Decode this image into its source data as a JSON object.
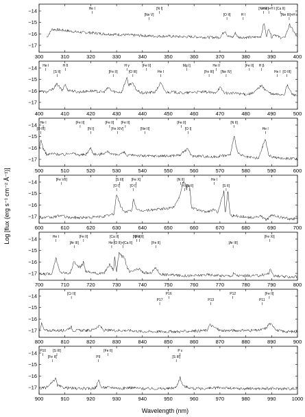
{
  "chart_data": {
    "type": "line",
    "xlabel": "Wavelength (nm)",
    "ylabel": "Log [flux (erg s⁻¹ cm⁻² Å⁻¹)]",
    "ylim": [
      -17.6,
      -13.4
    ],
    "yticks": [
      -14,
      -15,
      -16,
      -17
    ],
    "panels": [
      {
        "xlim": [
          300,
          400
        ],
        "xticks": [
          300,
          310,
          320,
          330,
          340,
          350,
          360,
          370,
          380,
          390,
          400
        ],
        "series": [
          {
            "x": [
              303,
              305,
              310,
              315,
              320,
              325,
              330,
              335,
              340,
              345,
              350,
              355,
              360,
              365,
              370,
              372,
              373,
              374,
              375,
              376,
              377,
              380,
              383,
              386,
              387,
              388,
              389,
              390,
              391,
              393,
              395,
              397,
              400
            ],
            "y": [
              -16.3,
              -15.6,
              -15.7,
              -15.85,
              -15.9,
              -16.0,
              -16.05,
              -16.1,
              -16.15,
              -16.2,
              -16.2,
              -16.25,
              -16.25,
              -16.3,
              -16.3,
              -15.7,
              -16.2,
              -16.25,
              -16.3,
              -15.9,
              -16.3,
              -16.3,
              -16.3,
              -16.2,
              -15.0,
              -16.2,
              -15.5,
              -16.3,
              -16.0,
              -16.3,
              -16.35,
              -15.2,
              -16.35
            ]
          }
        ],
        "labels": [
          {
            "text": "He I",
            "x": 320.5
          },
          {
            "text": "[Ne V]",
            "x": 342.6
          },
          {
            "text": "[N I]",
            "x": 346.6
          },
          {
            "text": "H I",
            "x": 379
          },
          {
            "text": "[Ne III]",
            "x": 386.9
          },
          {
            "text": "[Ne III]+H ε",
            "x": 396.8
          },
          {
            "text": "[Ca II]",
            "x": 393.4
          },
          {
            "text": "[O II]",
            "x": 372.7
          },
          {
            "text": "He I+H I",
            "x": 388.9
          }
        ]
      },
      {
        "xlim": [
          400,
          500
        ],
        "xticks": [
          400,
          410,
          420,
          430,
          440,
          450,
          460,
          470,
          480,
          490,
          500
        ],
        "series": [
          {
            "x": [
              400,
              403,
              405,
              407,
              409,
              410,
              411,
              413,
              415,
              420,
              425,
              427,
              428,
              430,
              432,
              434,
              434.5,
              436,
              438,
              440,
              445,
              447,
              449,
              452,
              456,
              460,
              465,
              468,
              470,
              472,
              474,
              476,
              480,
              483,
              486,
              487,
              490,
              492,
              495,
              496,
              498,
              500
            ],
            "y": [
              -16.0,
              -16.1,
              -15.9,
              -15.4,
              -16.0,
              -15.4,
              -15.9,
              -16.0,
              -16.1,
              -16.0,
              -16.1,
              -15.7,
              -16.0,
              -16.1,
              -16.1,
              -14.8,
              -15.5,
              -15.3,
              -16.0,
              -16.2,
              -16.1,
              -15.3,
              -16.1,
              -16.1,
              -16.2,
              -16.1,
              -16.1,
              -16.2,
              -15.7,
              -16.2,
              -16.2,
              -16.2,
              -16.3,
              -16.2,
              -15.5,
              -15.8,
              -16.3,
              -16.3,
              -16.3,
              -15.5,
              -16.3,
              -16.4
            ]
          }
        ],
        "labels": [
          {
            "text": "He I",
            "x": 402.6
          },
          {
            "text": "[S II]",
            "x": 407
          },
          {
            "text": "H δ",
            "x": 410.2
          },
          {
            "text": "[Fe II]",
            "x": 428.7
          },
          {
            "text": "H γ",
            "x": 434
          },
          {
            "text": "[O III]",
            "x": 436.3
          },
          {
            "text": "[Fe II]",
            "x": 441.6
          },
          {
            "text": "He I",
            "x": 447.1
          },
          {
            "text": "Mg I]",
            "x": 457.1
          },
          {
            "text": "[Fe III]",
            "x": 465.8
          },
          {
            "text": "He II",
            "x": 468.6
          },
          {
            "text": "[Ne IV]",
            "x": 472.4
          },
          {
            "text": "[Fe II]",
            "x": 481.4
          },
          {
            "text": "He I",
            "x": 492.2
          },
          {
            "text": "H β",
            "x": 486.1
          },
          {
            "text": "[O III]",
            "x": 495.9
          }
        ]
      },
      {
        "xlim": [
          500,
          600
        ],
        "xticks": [
          500,
          510,
          520,
          530,
          540,
          550,
          560,
          570,
          580,
          590,
          600
        ],
        "series": [
          {
            "x": [
              500,
              500.7,
              501.5,
              503,
              505,
              510,
              512,
              515,
              518,
              520,
              521,
              523,
              527,
              528,
              530,
              533,
              534,
              537,
              540,
              545,
              550,
              555,
              556,
              557.7,
              559,
              563,
              567,
              570,
              574,
              575.5,
              577,
              580,
              585,
              587.5,
              589,
              593,
              597,
              600
            ],
            "y": [
              -16.3,
              -15.2,
              -16.0,
              -16.6,
              -16.5,
              -16.6,
              -16.4,
              -16.6,
              -16.6,
              -16.0,
              -16.5,
              -16.6,
              -16.3,
              -16.6,
              -16.6,
              -16.4,
              -16.7,
              -16.6,
              -16.7,
              -16.7,
              -16.7,
              -16.6,
              -16.3,
              -16.1,
              -16.7,
              -16.7,
              -16.8,
              -16.7,
              -16.6,
              -15.0,
              -16.5,
              -16.8,
              -16.9,
              -15.2,
              -16.7,
              -16.9,
              -16.9,
              -17.0
            ]
          }
        ],
        "labels": [
          {
            "text": "He I",
            "x": 501.6
          },
          {
            "text": "[O III]",
            "x": 500.7
          },
          {
            "text": "[Fe II]",
            "x": 515.9
          },
          {
            "text": "[N I]",
            "x": 520
          },
          {
            "text": "[Fe II]",
            "x": 527.3
          },
          {
            "text": "[Fe XIV]",
            "x": 530.3
          },
          {
            "text": "[Fe II]",
            "x": 533.4
          },
          {
            "text": "[Ne II]",
            "x": 541
          },
          {
            "text": "[Fe II]",
            "x": 555.1
          },
          {
            "text": "[O I]",
            "x": 557.7
          },
          {
            "text": "[N II]",
            "x": 575.5
          },
          {
            "text": "He I",
            "x": 587.6
          }
        ]
      },
      {
        "xlim": [
          600,
          700
        ],
        "xticks": [
          600,
          610,
          620,
          630,
          640,
          650,
          660,
          670,
          680,
          690,
          700
        ],
        "series": [
          {
            "x": [
              600,
              605,
              608.7,
              611,
              620,
              625,
              629,
              630,
              631.5,
              633,
              636,
              636.4,
              638,
              640,
              645,
              650,
              652,
              654.5,
              655.5,
              656.3,
              657,
              658.3,
              659,
              662,
              665,
              667.8,
              669,
              671.6,
              672,
              673.1,
              674,
              678,
              682,
              686,
              688,
              690,
              694,
              697,
              700
            ],
            "y": [
              -17.1,
              -17.1,
              -16.9,
              -17.1,
              -17.1,
              -17.0,
              -16.8,
              -15.0,
              -16.1,
              -16.6,
              -16.5,
              -15.4,
              -16.5,
              -16.5,
              -16.4,
              -16.3,
              -16.2,
              -15.2,
              -14.1,
              -14.0,
              -14.6,
              -14.3,
              -16.2,
              -16.5,
              -16.6,
              -16.4,
              -16.7,
              -14.8,
              -16.8,
              -14.8,
              -16.9,
              -17.0,
              -17.1,
              -17.0,
              -17.3,
              -16.9,
              -17.1,
              -17.2,
              -17.2
            ]
          }
        ],
        "labels": [
          {
            "text": "[Fe VII]",
            "x": 608.7
          },
          {
            "text": "[O I]",
            "x": 630
          },
          {
            "text": "[S III]",
            "x": 631.2
          },
          {
            "text": "[O I]",
            "x": 636.4
          },
          {
            "text": "[Fe X]",
            "x": 637.5
          },
          {
            "text": "H α",
            "x": 656.3
          },
          {
            "text": "[N II]",
            "x": 654.8
          },
          {
            "text": "[N II]",
            "x": 658.3
          },
          {
            "text": "He I",
            "x": 667.8
          },
          {
            "text": "[S II]",
            "x": 672.4
          }
        ]
      },
      {
        "xlim": [
          700,
          800
        ],
        "xticks": [
          700,
          710,
          720,
          730,
          740,
          750,
          760,
          770,
          780,
          790,
          800
        ],
        "series": [
          {
            "x": [
              700,
              705,
              706.5,
              708,
              712,
              713.6,
              714.5,
              716,
              717.2,
              718,
              722,
              725,
              727.4,
              729,
              729.1,
              730,
              731,
              732,
              733,
              734,
              735,
              738.8,
              740,
              743,
              745.2,
              747,
              750,
              755,
              760,
              765,
              770,
              775,
              775.1,
              777,
              780,
              785,
              789,
              789.2,
              791,
              795,
              800
            ],
            "y": [
              -17.1,
              -17.0,
              -15.6,
              -16.9,
              -17.0,
              -15.9,
              -16.3,
              -16.5,
              -16.0,
              -16.8,
              -17.0,
              -17.0,
              -16.2,
              -16.8,
              -15.3,
              -16.8,
              -15.1,
              -15.5,
              -15.6,
              -16.4,
              -16.9,
              -16.6,
              -16.9,
              -17.0,
              -16.5,
              -17.1,
              -17.1,
              -17.2,
              -17.2,
              -17.1,
              -17.2,
              -17.2,
              -17.0,
              -17.2,
              -17.2,
              -17.2,
              -17.0,
              -16.6,
              -17.2,
              -17.3,
              -17.3
            ]
          }
        ],
        "labels": [
          {
            "text": "He I",
            "x": 706.5
          },
          {
            "text": "[Ar III]",
            "x": 713.6
          },
          {
            "text": "[Fe II]",
            "x": 717.2
          },
          {
            "text": "He I",
            "x": 728.1
          },
          {
            "text": "[Ca II]",
            "x": 729.1
          },
          {
            "text": "[O II]+[Ca II]",
            "x": 732.5
          },
          {
            "text": "[Ni II]",
            "x": 737.8
          },
          {
            "text": "[Fe II]",
            "x": 745.2
          },
          {
            "text": "[Fe II]",
            "x": 738.8
          },
          {
            "text": "[Ar III]",
            "x": 775.1
          },
          {
            "text": "[Fe XI]",
            "x": 789.2
          }
        ]
      },
      {
        "xlim": [
          800,
          900
        ],
        "xticks": [
          800,
          810,
          820,
          830,
          840,
          850,
          860,
          870,
          880,
          890,
          900
        ],
        "series": [
          {
            "x": [
              800,
              801,
              802,
              805,
              810,
              812.5,
              813,
              815,
              820,
              823.6,
              825,
              830,
              835,
              840,
              845,
              850,
              853,
              855,
              865,
              866,
              870,
              875,
              880,
              885,
              888,
              889,
              890.7,
              892,
              895,
              900
            ],
            "y": [
              -17.0,
              -16.4,
              -17.0,
              -17.0,
              -17.0,
              -16.7,
              -17.0,
              -17.0,
              -17.0,
              -16.6,
              -17.0,
              -17.0,
              -17.0,
              -17.1,
              -17.1,
              -17.1,
              -17.1,
              -17.1,
              -17.0,
              -16.5,
              -17.0,
              -17.0,
              -17.0,
              -17.0,
              -16.8,
              -16.4,
              -16.6,
              -17.0,
              -17.1,
              -17.1
            ]
          }
        ],
        "labels": [
          {
            "text": "[Cr II]",
            "x": 812.5
          },
          {
            "text": "P17",
            "x": 846.7
          },
          {
            "text": "P16",
            "x": 850.2
          },
          {
            "text": "P13",
            "x": 866.5
          },
          {
            "text": "P12",
            "x": 875
          },
          {
            "text": "P11",
            "x": 886.3
          },
          {
            "text": "[Fe II]",
            "x": 889.1
          }
        ]
      },
      {
        "xlim": [
          900,
          1000
        ],
        "xticks": [
          900,
          910,
          920,
          930,
          940,
          950,
          960,
          970,
          980,
          990,
          1000
        ],
        "series": [
          {
            "x": [
              900,
              903,
              905,
              906.5,
              907,
              909,
              915,
              920,
              922,
              923.2,
              924,
              926,
              929,
              932,
              935,
              940,
              945,
              950,
              953,
              954.6,
              955,
              956,
              958,
              960,
              965,
              970,
              975,
              980,
              985,
              990,
              995,
              1000
            ],
            "y": [
              -17.1,
              -17.0,
              -16.6,
              -16.2,
              -16.8,
              -17.0,
              -17.1,
              -17.1,
              -17.0,
              -16.3,
              -17.0,
              -17.0,
              -17.0,
              -17.1,
              -17.0,
              -17.1,
              -17.1,
              -17.1,
              -17.0,
              -16.1,
              -16.5,
              -16.9,
              -17.0,
              -17.1,
              -17.1,
              -17.0,
              -17.1,
              -17.1,
              -17.1,
              -17.1,
              -17.1,
              -17.1
            ]
          }
        ],
        "labels": [
          {
            "text": "P10",
            "x": 901.5
          },
          {
            "text": "[Fe II]",
            "x": 905.1
          },
          {
            "text": "[S III]",
            "x": 906.9
          },
          {
            "text": "P9",
            "x": 922.9
          },
          {
            "text": "[Fe II]",
            "x": 926.7
          },
          {
            "text": "[S III]",
            "x": 953.1
          },
          {
            "text": "P ε",
            "x": 954.6
          }
        ]
      }
    ]
  }
}
